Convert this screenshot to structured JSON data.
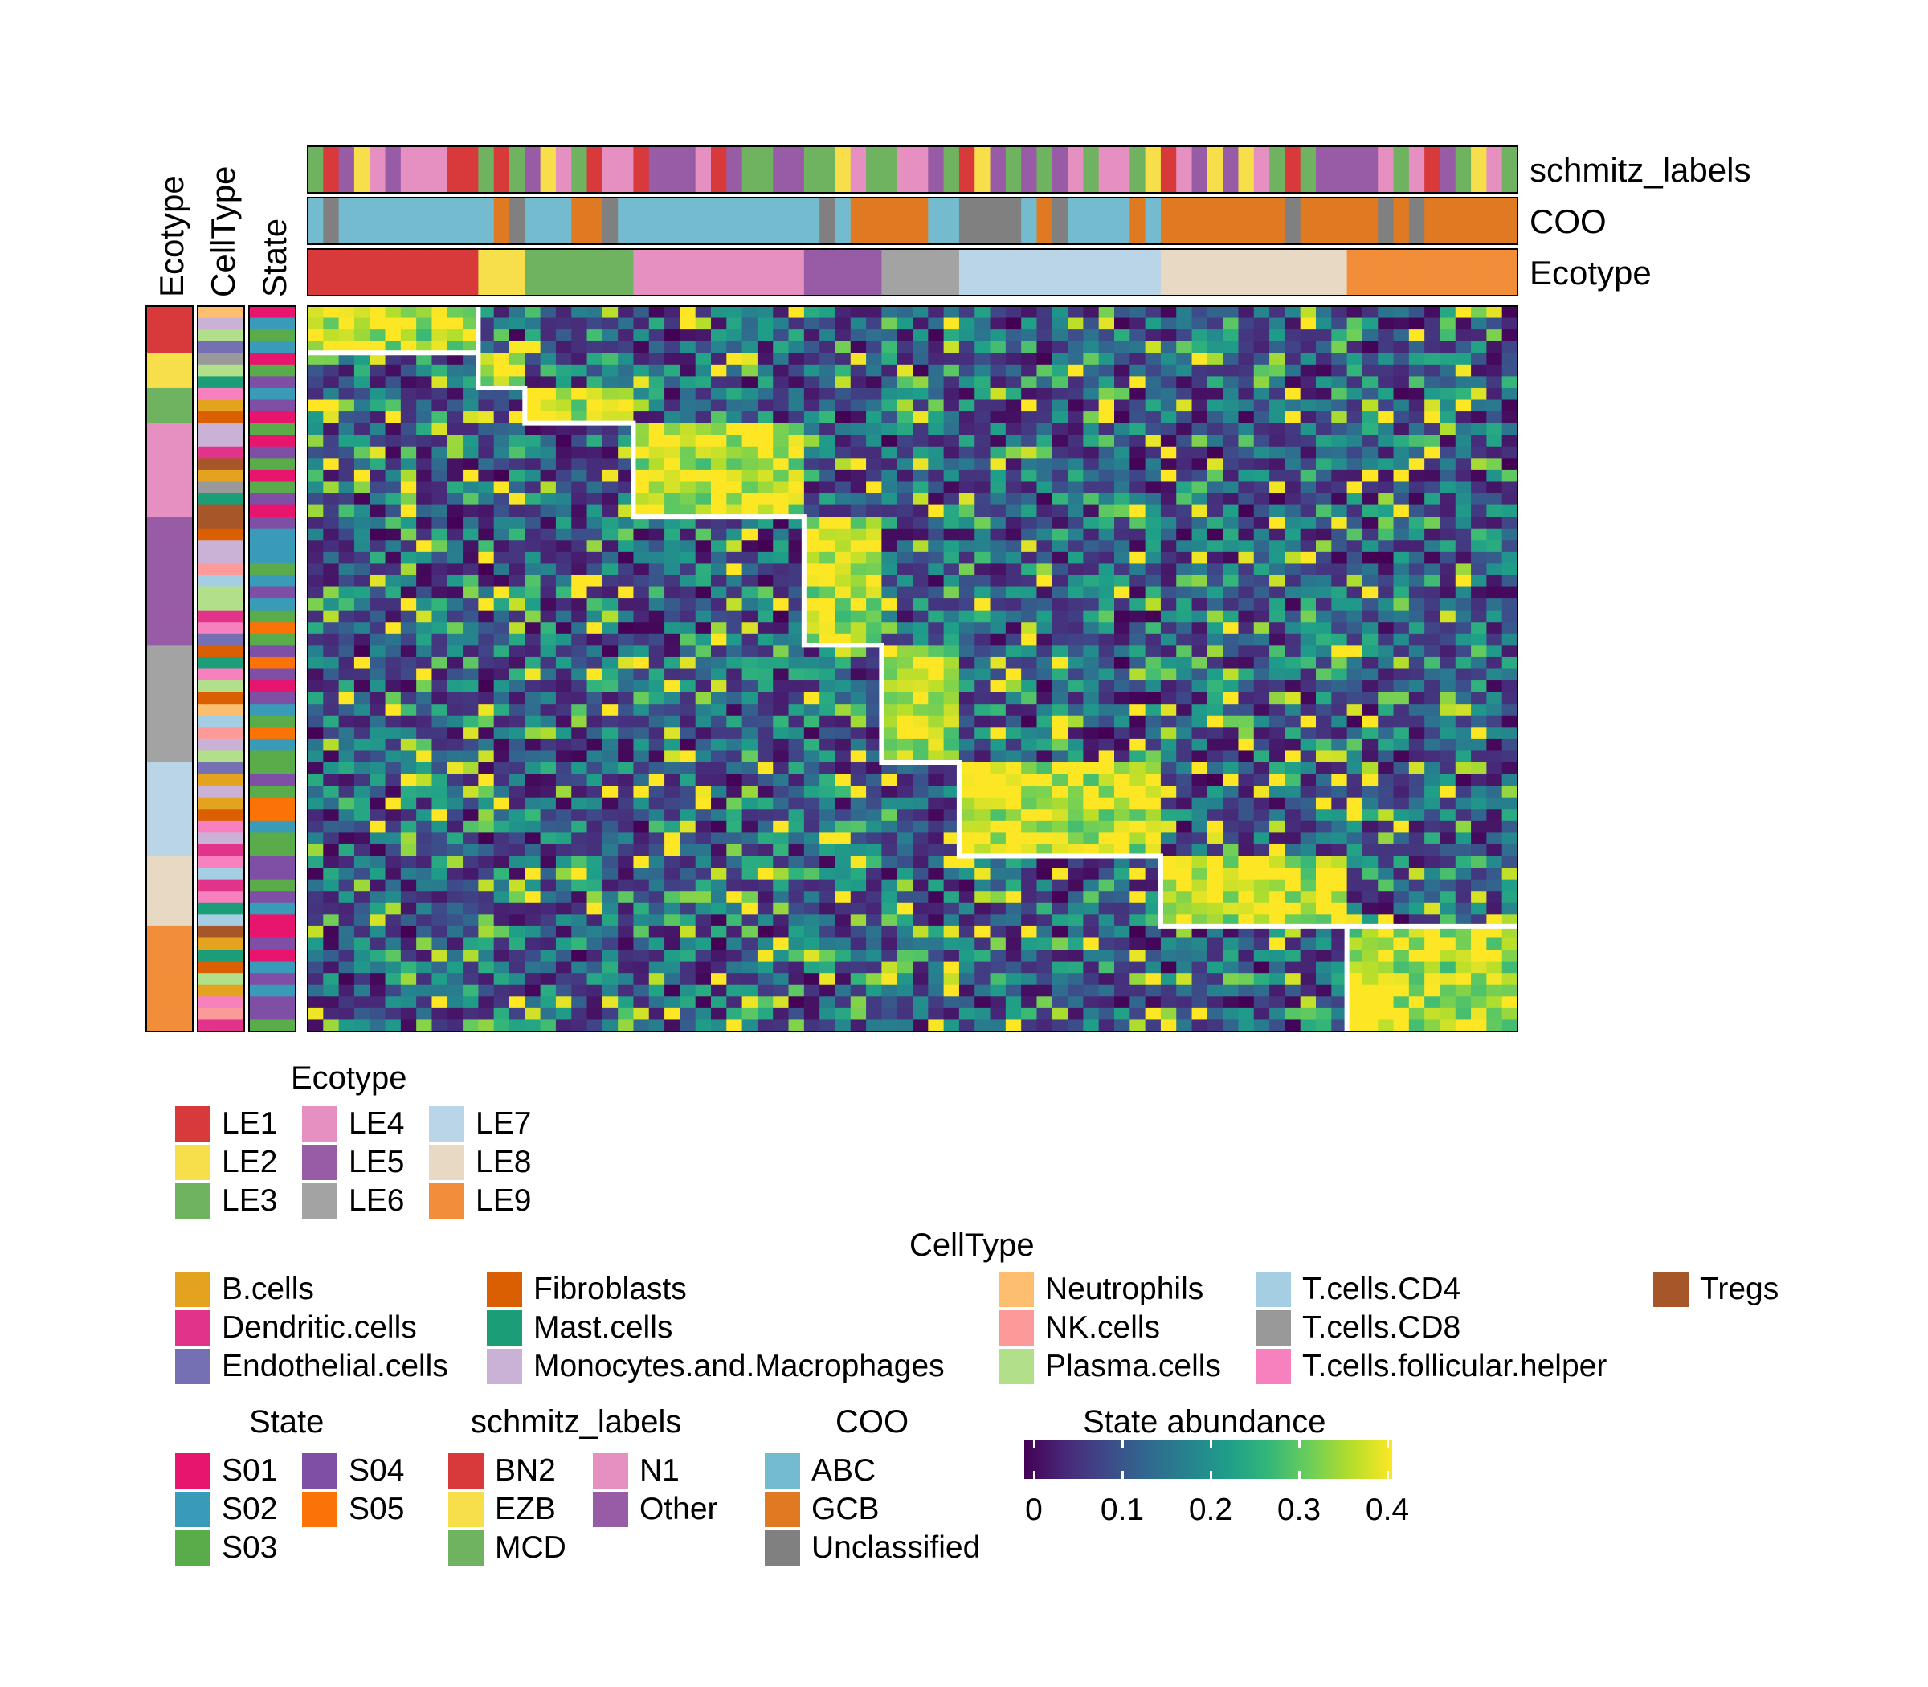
{
  "chart_data": {
    "type": "heatmap",
    "value_label": "State abundance",
    "scale": {
      "min": 0,
      "max": 0.4,
      "ticks": [
        "0",
        "0.1",
        "0.2",
        "0.3",
        "0.4"
      ],
      "palette": "viridis"
    },
    "n_rows": 62,
    "n_cols": 78,
    "row_ecotypes": [
      "LE1",
      "LE2",
      "LE3",
      "LE4",
      "LE5",
      "LE6",
      "LE7",
      "LE8",
      "LE9"
    ],
    "row_ecotype_counts": [
      4,
      3,
      3,
      8,
      11,
      10,
      8,
      6,
      9
    ],
    "col_ecotypes": [
      "LE1",
      "LE2",
      "LE3",
      "LE4",
      "LE5",
      "LE6",
      "LE7",
      "LE8",
      "LE9"
    ],
    "col_ecotype_counts": [
      11,
      3,
      7,
      11,
      5,
      5,
      13,
      12,
      11
    ],
    "diagonal_block_note": "White outlines mark rows and columns belonging to the same ecotype; cells inside blocks are high (approx. 0.3-0.4).",
    "row_annotation_titles": [
      "Ecotype",
      "CellType",
      "State"
    ],
    "col_annotation_titles": [
      "schmitz_labels",
      "COO",
      "Ecotype"
    ]
  },
  "legends": {
    "ecotype": {
      "title": "Ecotype",
      "items": [
        {
          "label": "LE1",
          "color": "#d8393a"
        },
        {
          "label": "LE2",
          "color": "#f7de4b"
        },
        {
          "label": "LE3",
          "color": "#6fb360"
        },
        {
          "label": "LE4",
          "color": "#e590c0"
        },
        {
          "label": "LE5",
          "color": "#985ba6"
        },
        {
          "label": "LE6",
          "color": "#a3a3a3"
        },
        {
          "label": "LE7",
          "color": "#bad5e8"
        },
        {
          "label": "LE8",
          "color": "#e8d9c4"
        },
        {
          "label": "LE9",
          "color": "#f28e39"
        }
      ]
    },
    "celltype": {
      "title": "CellType",
      "items": [
        {
          "label": "B.cells",
          "color": "#e3a31f"
        },
        {
          "label": "Dendritic.cells",
          "color": "#e2338a"
        },
        {
          "label": "Endothelial.cells",
          "color": "#7570b3"
        },
        {
          "label": "Fibroblasts",
          "color": "#d95f02"
        },
        {
          "label": "Mast.cells",
          "color": "#1b9e77"
        },
        {
          "label": "Monocytes.and.Macrophages",
          "color": "#cab2d6"
        },
        {
          "label": "Neutrophils",
          "color": "#fdbf6f"
        },
        {
          "label": "NK.cells",
          "color": "#fb9a99"
        },
        {
          "label": "Plasma.cells",
          "color": "#b2df8a"
        },
        {
          "label": "T.cells.CD4",
          "color": "#a6cee3"
        },
        {
          "label": "T.cells.CD8",
          "color": "#999999"
        },
        {
          "label": "T.cells.follicular.helper",
          "color": "#f781bf"
        },
        {
          "label": "Tregs",
          "color": "#a65628"
        }
      ]
    },
    "state": {
      "title": "State",
      "items": [
        {
          "label": "S01",
          "color": "#e7156e"
        },
        {
          "label": "S02",
          "color": "#3a9bb9"
        },
        {
          "label": "S03",
          "color": "#5aab4a"
        },
        {
          "label": "S04",
          "color": "#7f4fa5"
        },
        {
          "label": "S05",
          "color": "#fb7307"
        }
      ]
    },
    "schmitz": {
      "title": "schmitz_labels",
      "items": [
        {
          "label": "BN2",
          "color": "#d8393a"
        },
        {
          "label": "EZB",
          "color": "#f7de4b"
        },
        {
          "label": "MCD",
          "color": "#6fb360"
        },
        {
          "label": "N1",
          "color": "#e590c0"
        },
        {
          "label": "Other",
          "color": "#985ba6"
        }
      ]
    },
    "coo": {
      "title": "COO",
      "items": [
        {
          "label": "ABC",
          "color": "#74bbd0"
        },
        {
          "label": "GCB",
          "color": "#df7a22"
        },
        {
          "label": "Unclassified",
          "color": "#808080"
        }
      ]
    }
  }
}
